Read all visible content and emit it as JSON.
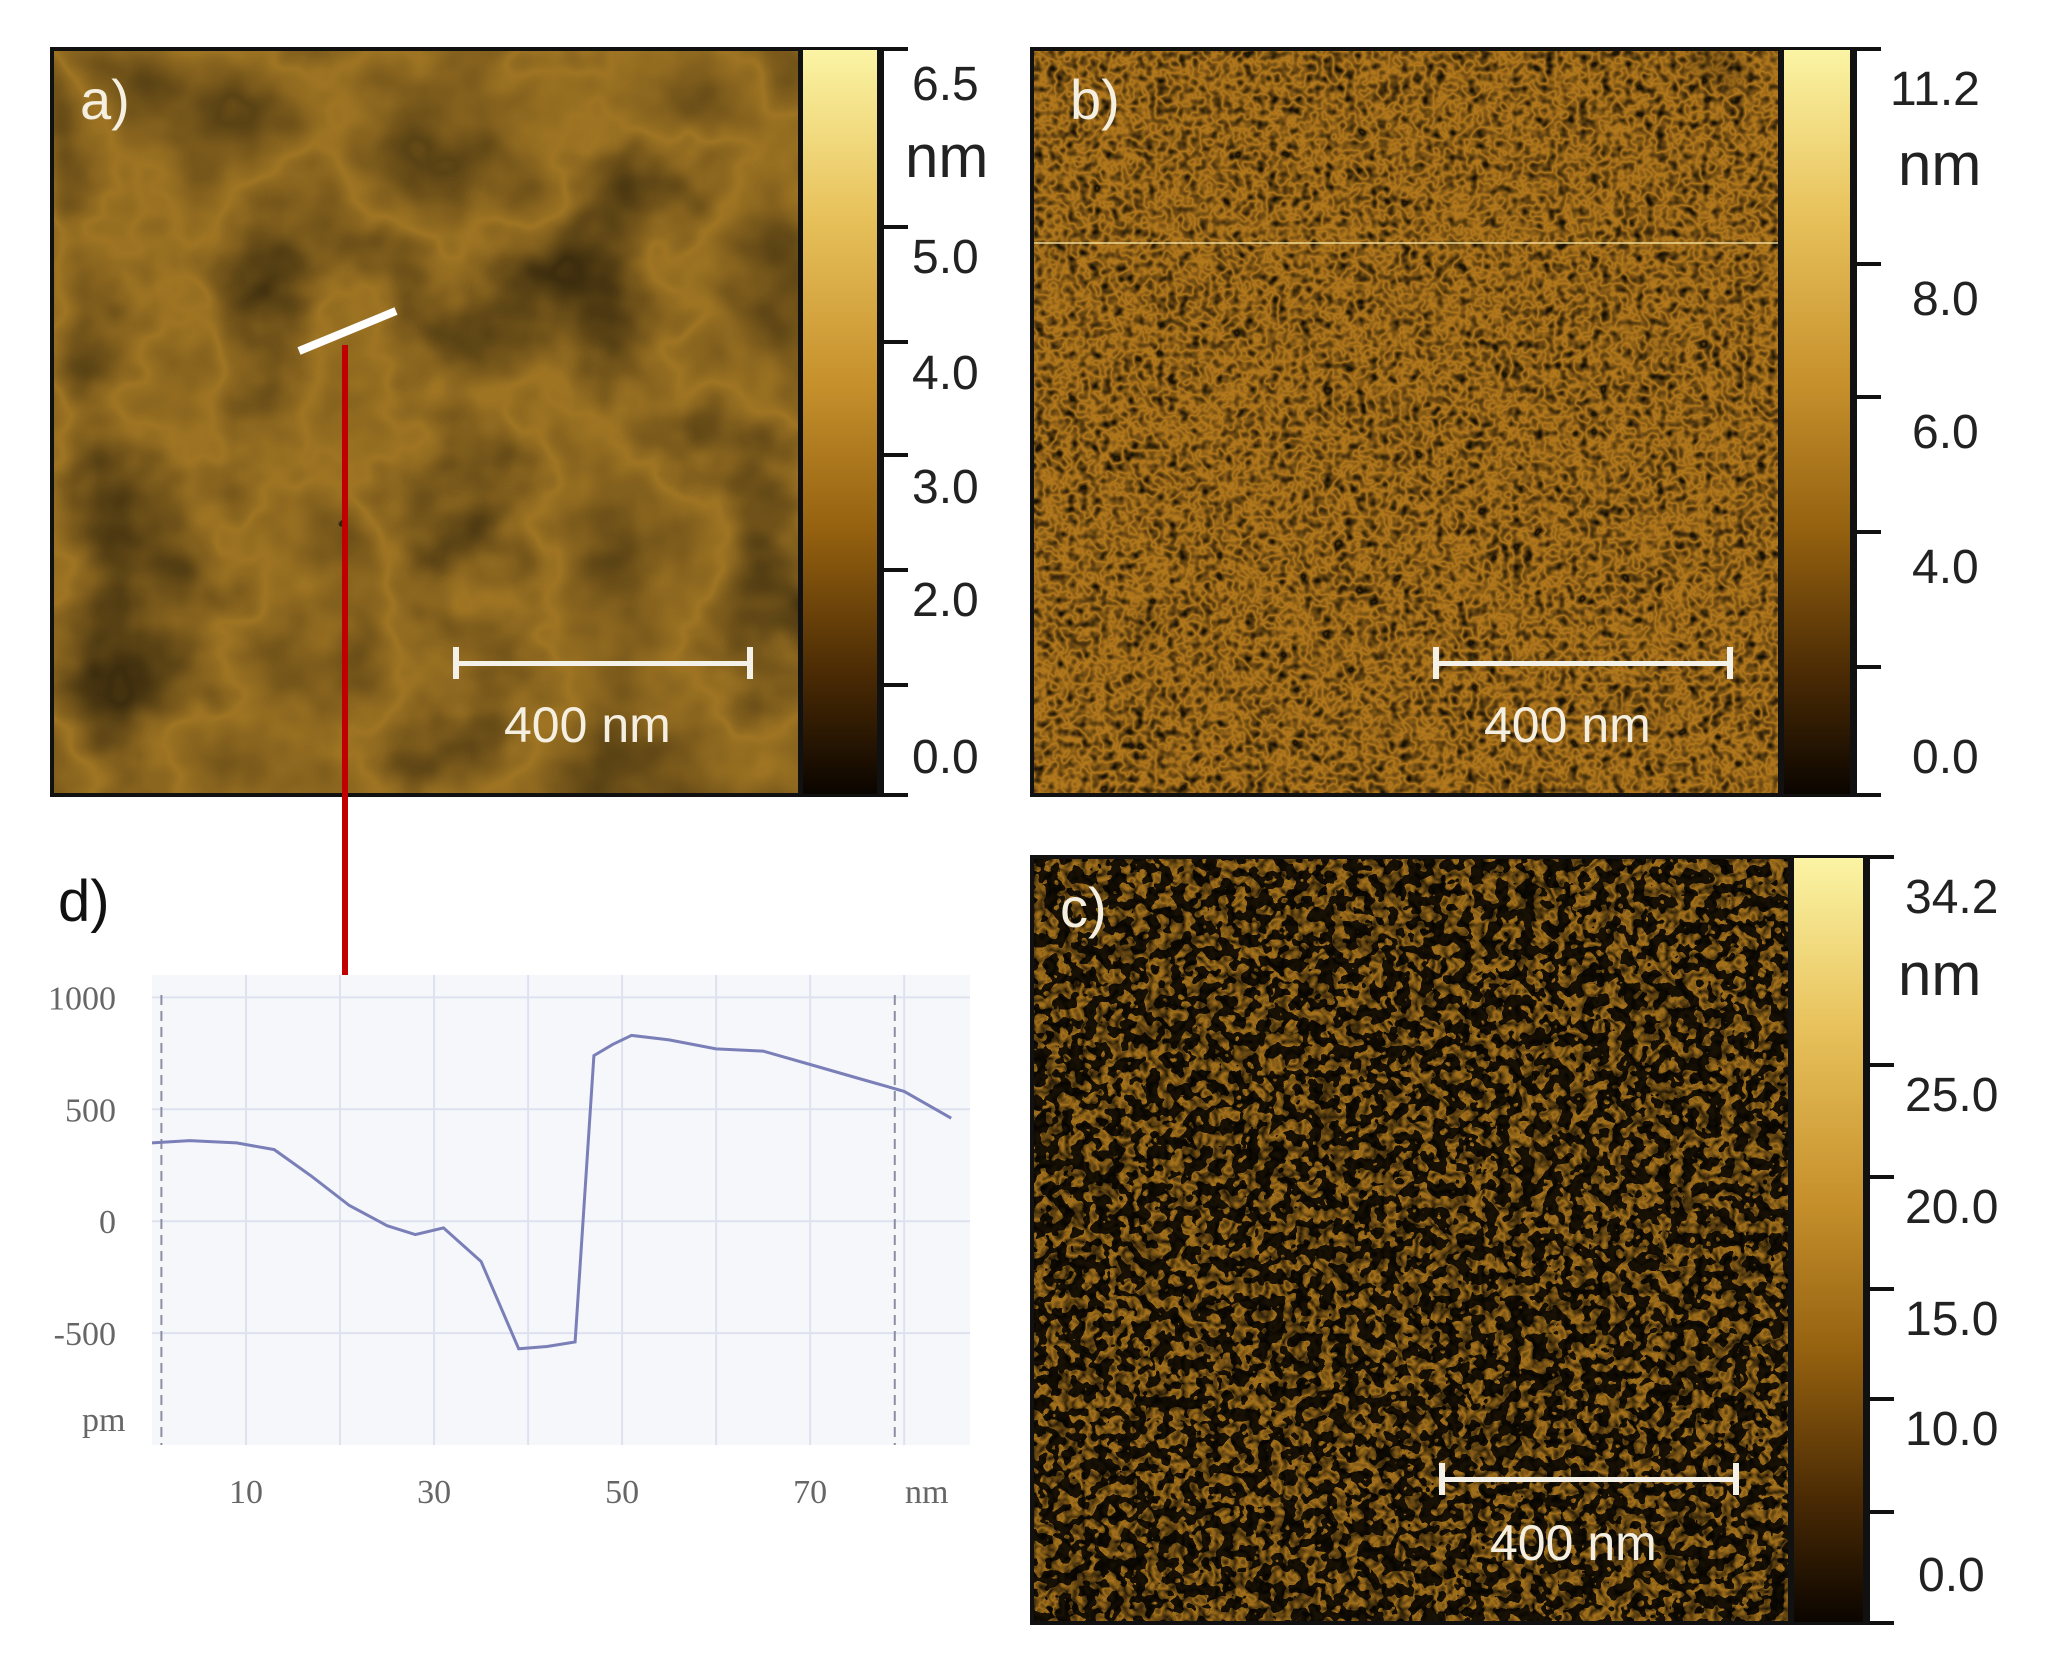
{
  "panels": {
    "a": {
      "label": "a)",
      "scale_bar": "400 nm",
      "colorbar": {
        "max": "6.5",
        "unit": "nm",
        "ticks": [
          "5.0",
          "4.0",
          "3.0",
          "2.0",
          "0.0"
        ]
      }
    },
    "b": {
      "label": "b)",
      "scale_bar": "400 nm",
      "colorbar": {
        "max": "11.2",
        "unit": "nm",
        "ticks": [
          "8.0",
          "6.0",
          "4.0",
          "0.0"
        ]
      }
    },
    "c": {
      "label": "c)",
      "scale_bar": "400 nm",
      "colorbar": {
        "max": "34.2",
        "unit": "nm",
        "ticks": [
          "25.0",
          "20.0",
          "15.0",
          "10.0",
          "0.0"
        ]
      }
    },
    "d": {
      "label": "d)"
    }
  },
  "colors": {
    "afm_light": "#fbf4a4",
    "afm_mid": "#c6902c",
    "afm_dark": "#0b0500",
    "arrow": "#c00000",
    "profile_line": "#7b7fb8"
  },
  "chart_data": {
    "type": "line",
    "x": [
      0,
      4,
      9,
      13,
      17,
      21,
      25,
      28,
      31,
      35,
      39,
      42,
      45,
      47,
      49,
      51,
      55,
      60,
      65,
      70,
      75,
      80,
      85
    ],
    "y": [
      350,
      360,
      350,
      320,
      200,
      70,
      -20,
      -60,
      -30,
      -180,
      -570,
      -560,
      -540,
      740,
      790,
      830,
      810,
      770,
      760,
      700,
      640,
      580,
      460
    ],
    "xticks": [
      "10",
      "30",
      "50",
      "70"
    ],
    "yticks": [
      "1000",
      "500",
      "0",
      "-500"
    ],
    "xunit": "nm",
    "yunit": "pm",
    "xlim": [
      0,
      87
    ],
    "ylim": [
      -1000,
      1100
    ],
    "markers_x": [
      1,
      79
    ],
    "grid": true
  }
}
